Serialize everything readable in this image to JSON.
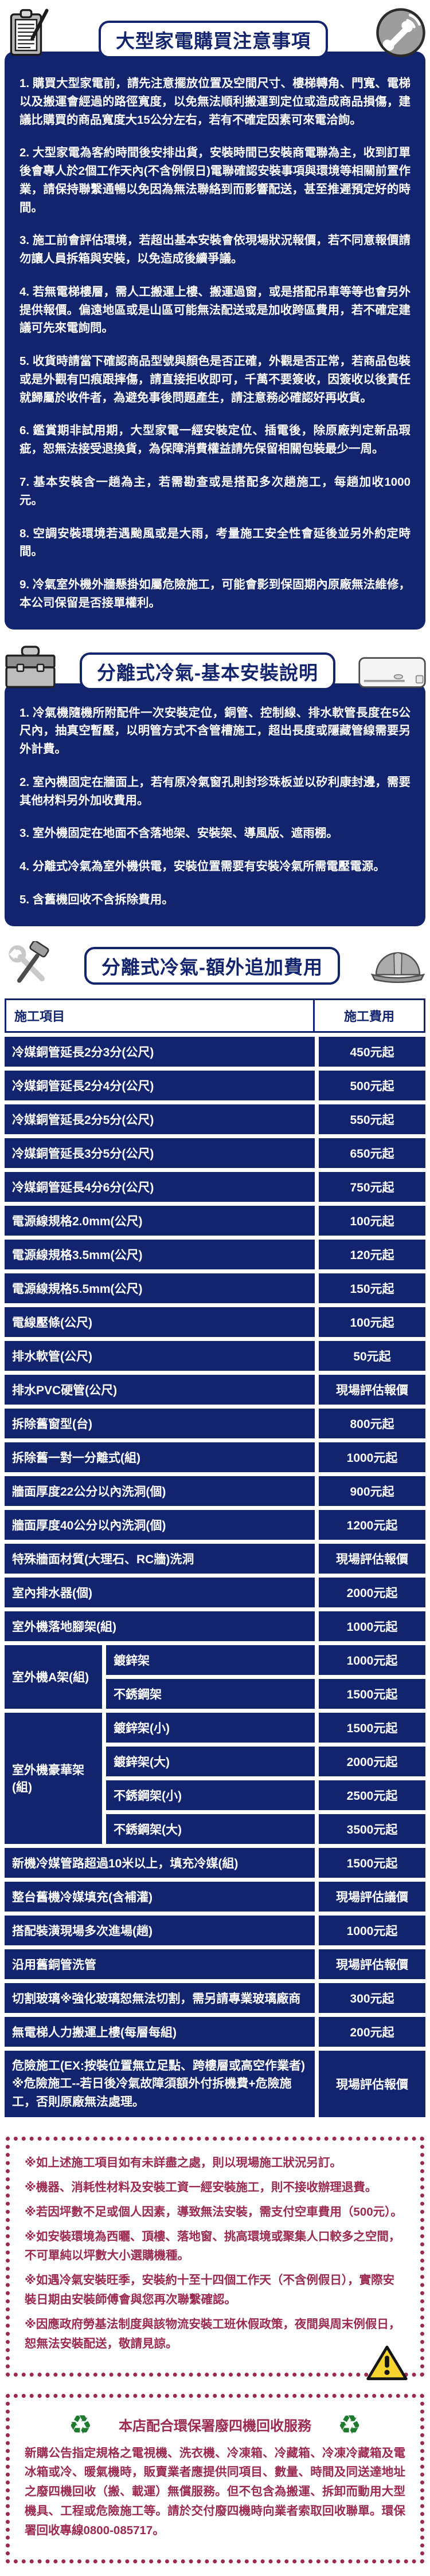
{
  "colors": {
    "navy": "#13246e",
    "maroon": "#9b2950",
    "recycle_green": "#1d7a2e",
    "warning_yellow": "#f6d32d",
    "icon_gray": "#a9a9a9"
  },
  "sections": {
    "notice": {
      "title": "大型家電購買注意事項",
      "icon_left": "clipboard-icon",
      "icon_right": "phone-icon",
      "items": [
        "1. 購買大型家電前，請先注意擺放位置及空間尺寸、樓梯轉角、門寬、電梯以及搬運會經過的路徑寬度，以免無法順利搬運到定位或造成商品損傷，建議比購買的商品寬度大15公分左右，若有不確定因素可來電洽詢。",
        "2. 大型家電為客約時間後安排出貨，安裝時間已安裝商電聯為主，收到訂單後會專人於2個工作天內(不含例假日)電聯確認安裝事項與環境等相關前置作業，請保持聯繫通暢以免因為無法聯絡到而影響配送，甚至推遲預定好的時間。",
        "3. 施工前會評估環境，若超出基本安裝會依現場狀況報價，若不同意報價請勿讓人員拆箱與安裝，以免造成後續爭議。",
        "4. 若無電梯樓層，需人工搬運上樓、搬運過窗，或是搭配吊車等等也會另外提供報價。偏遠地區或是山區可能無法配送或是加收跨區費用，若不確定建議可先來電詢問。",
        "5. 收貨時請當下確認商品型號與顏色是否正確，外觀是否正常，若商品包裝或是外觀有凹痕跟摔傷，請直接拒收即可，千萬不要簽收，因簽收以後責任就歸屬於收件者，為避免事後問題產生，請注意務必確認好再收貨。",
        "6. 鑑賞期非試用期，大型家電一經安裝定位、插電後，除原廠判定新品瑕疵，恕無法接受退換貨，為保障消費權益請先保留相關包裝最少一周。",
        "7. 基本安裝含一趟為主，若需勘查或是搭配多次趟施工，每趟加收1000元。",
        "8. 空調安裝環境若遇颱風或是大雨，考量施工安全性會延後並另外約定時間。",
        "9. 冷氣室外機外牆懸掛如屬危險施工，可能會影到保固期內原廠無法維修，本公司保留是否接單權利。"
      ]
    },
    "install": {
      "title": "分離式冷氣-基本安裝說明",
      "icon_left": "toolbox-icon",
      "icon_right": "aircon-icon",
      "items": [
        "1. 冷氣機隨機所附配件一次安裝定位，銅管、控制線、排水軟管長度在5公尺內，抽真空暫壓，以明管方式不含管槽施工，超出長度或隱藏管線需要另外計費。",
        "2. 室內機固定在牆面上，若有原冷氣窗孔則封珍珠板並以矽利康封邊，需要其他材料另外加收費用。",
        "3. 室外機固定在地面不含落地架、安裝架、導風版、遮雨棚。",
        "4. 分離式冷氣為室外機供電，安裝位置需要有安裝冷氣所需電壓電源。",
        "5. 含舊機回收不含拆除費用。"
      ]
    },
    "fees": {
      "title": "分離式冷氣-額外追加費用",
      "icon_left": "tools-icon",
      "icon_right": "helmet-icon",
      "table": {
        "headers": [
          "施工項目",
          "施工費用"
        ],
        "rows": [
          {
            "item": "冷媒銅管延長2分3分(公尺)",
            "fee": "450元起"
          },
          {
            "item": "冷媒銅管延長2分4分(公尺)",
            "fee": "500元起"
          },
          {
            "item": "冷媒銅管延長2分5分(公尺)",
            "fee": "550元起"
          },
          {
            "item": "冷媒銅管延長3分5分(公尺)",
            "fee": "650元起"
          },
          {
            "item": "冷媒銅管延長4分6分(公尺)",
            "fee": "750元起"
          },
          {
            "item": "電源線規格2.0mm(公尺)",
            "fee": "100元起"
          },
          {
            "item": "電源線規格3.5mm(公尺)",
            "fee": "120元起"
          },
          {
            "item": "電源線規格5.5mm(公尺)",
            "fee": "150元起"
          },
          {
            "item": "電線壓條(公尺)",
            "fee": "100元起"
          },
          {
            "item": "排水軟管(公尺)",
            "fee": "50元起"
          },
          {
            "item": "排水PVC硬管(公尺)",
            "fee": "現場評估報價"
          },
          {
            "item": "拆除舊窗型(台)",
            "fee": "800元起"
          },
          {
            "item": "拆除舊一對一分離式(組)",
            "fee": "1000元起"
          },
          {
            "item": "牆面厚度22公分以內洗洞(個)",
            "fee": "900元起"
          },
          {
            "item": "牆面厚度40公分以內洗洞(個)",
            "fee": "1200元起"
          },
          {
            "item": "特殊牆面材質(大理石、RC牆)洗洞",
            "fee": "現場評估報價"
          },
          {
            "item": "室內排水器(個)",
            "fee": "2000元起"
          },
          {
            "item": "室外機落地腳架(組)",
            "fee": "1000元起"
          },
          {
            "group": "室外機A架(組)",
            "subrows": [
              {
                "item": "鍍鋅架",
                "fee": "1000元起"
              },
              {
                "item": "不銹鋼架",
                "fee": "1500元起"
              }
            ]
          },
          {
            "group": "室外機豪華架(組)",
            "subrows": [
              {
                "item": "鍍鋅架(小)",
                "fee": "1500元起"
              },
              {
                "item": "鍍鋅架(大)",
                "fee": "2000元起"
              },
              {
                "item": "不銹鋼架(小)",
                "fee": "2500元起"
              },
              {
                "item": "不銹鋼架(大)",
                "fee": "3500元起"
              }
            ]
          },
          {
            "item": "新機冷媒管路超過10米以上，填充冷媒(組)",
            "fee": "1500元起"
          },
          {
            "item": "整台舊機冷媒填充(含補灌)",
            "fee": "現場評估議價"
          },
          {
            "item": "搭配裝潢現場多次進場(趟)",
            "fee": "1000元起"
          },
          {
            "item": "沿用舊銅管洗管",
            "fee": "現場評估報價"
          },
          {
            "item": "切割玻璃※強化玻璃恕無法切割，需另請專業玻璃廠商",
            "fee": "300元起"
          },
          {
            "item": "無電梯人力搬運上樓(每層每組)",
            "fee": "200元起"
          },
          {
            "item": "危險施工(EX:按裝位置無立足點、跨樓層或高空作業者)\n※危險施工--若日後冷氣故障須額外付拆機費+危險施工，否則原廠無法處理。",
            "fee": "現場評估報價"
          }
        ]
      }
    }
  },
  "notes": {
    "icon": "warning-icon",
    "items": [
      "※如上述施工項目如有未詳盡之處，則以現場施工狀況另訂。",
      "※機器、消耗性材料及安裝工資一經安裝施工，則不接收辦理退費。",
      "※若因坪數不足或個人因素，導致無法安裝，需支付空車費用（500元）。",
      "※如安裝環境為西曬、頂樓、落地窗、挑高環境或聚集人口較多之空間，不可單純以坪數大小選購機種。",
      "※如遇冷氣安裝旺季，安裝約十至十四個工作天（不含例假日），實際安裝日期由安裝師傅會與您再次聯繫確認。",
      "※因應政府勞基法制度與該物流安裝工班休假政策，夜間與周末例假日，恕無法安裝配送，敬請見諒。"
    ]
  },
  "recycle": {
    "icon": "recycle-icon",
    "title": "本店配合環保署廢四機回收服務",
    "body": "新購公告指定規格之電視機、洗衣機、冷凍箱、冷藏箱、冷凍冷藏箱及電冰箱或冷、暖氣機時，販賣業者應提供同項目、數量、時間及同送達地址之廢四機回收（搬、載運）無償服務。但不包含為搬運、拆卸而動用大型機具、工程或危險施工等。請於交付廢四機時向業者索取回收聯單。環保署回收專線0800-085717。",
    "hotline": "0800-085717"
  }
}
